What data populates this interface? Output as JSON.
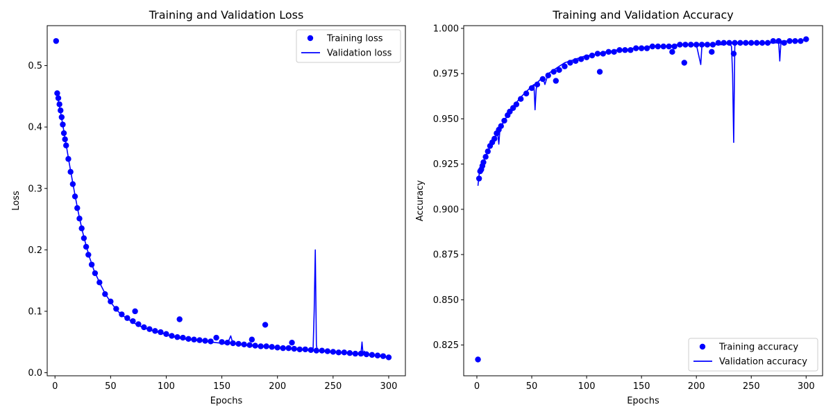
{
  "chart_data": [
    {
      "type": "scatter+line",
      "title": "Training and Validation Loss",
      "xlabel": "Epochs",
      "ylabel": "Loss",
      "xlim": [
        -7,
        315
      ],
      "ylim": [
        -0.005,
        0.565
      ],
      "xticks": [
        0,
        50,
        100,
        150,
        200,
        250,
        300
      ],
      "yticks": [
        0.0,
        0.1,
        0.2,
        0.3,
        0.4,
        0.5
      ],
      "ytick_labels": [
        "0.0",
        "0.1",
        "0.2",
        "0.3",
        "0.4",
        "0.5"
      ],
      "grid": false,
      "legend_placement": "upper-right",
      "color": "#0000ff",
      "series": [
        {
          "name": "Training loss",
          "style": "markers",
          "x": [
            1,
            2,
            3,
            4,
            5,
            6,
            7,
            8,
            9,
            10,
            12,
            14,
            16,
            18,
            20,
            22,
            24,
            26,
            28,
            30,
            33,
            36,
            40,
            45,
            50,
            55,
            60,
            65,
            70,
            72,
            75,
            80,
            85,
            90,
            95,
            100,
            105,
            110,
            112,
            115,
            120,
            125,
            130,
            135,
            140,
            145,
            150,
            155,
            160,
            165,
            170,
            175,
            177,
            180,
            185,
            189,
            190,
            195,
            200,
            205,
            210,
            213,
            215,
            220,
            225,
            230,
            235,
            240,
            245,
            250,
            255,
            260,
            265,
            270,
            275,
            280,
            285,
            290,
            295,
            300
          ],
          "y": [
            0.54,
            0.455,
            0.447,
            0.437,
            0.427,
            0.416,
            0.404,
            0.39,
            0.38,
            0.37,
            0.348,
            0.327,
            0.307,
            0.287,
            0.268,
            0.251,
            0.235,
            0.219,
            0.205,
            0.192,
            0.176,
            0.162,
            0.147,
            0.128,
            0.116,
            0.104,
            0.095,
            0.089,
            0.084,
            0.1,
            0.079,
            0.074,
            0.071,
            0.068,
            0.066,
            0.063,
            0.06,
            0.058,
            0.087,
            0.057,
            0.055,
            0.054,
            0.053,
            0.052,
            0.051,
            0.057,
            0.05,
            0.049,
            0.048,
            0.047,
            0.046,
            0.045,
            0.054,
            0.044,
            0.043,
            0.078,
            0.043,
            0.042,
            0.041,
            0.04,
            0.04,
            0.049,
            0.039,
            0.038,
            0.038,
            0.037,
            0.036,
            0.036,
            0.035,
            0.034,
            0.033,
            0.033,
            0.032,
            0.031,
            0.031,
            0.03,
            0.029,
            0.028,
            0.027,
            0.025
          ]
        },
        {
          "name": "Validation loss",
          "style": "line",
          "x": [
            1,
            2,
            3,
            4,
            5,
            6,
            8,
            10,
            12,
            14,
            16,
            18,
            20,
            22,
            25,
            28,
            31,
            35,
            40,
            45,
            50,
            55,
            60,
            65,
            70,
            75,
            80,
            85,
            90,
            95,
            100,
            105,
            110,
            115,
            120,
            125,
            130,
            135,
            140,
            145,
            150,
            155,
            158,
            160,
            165,
            170,
            175,
            180,
            185,
            190,
            195,
            200,
            205,
            210,
            215,
            220,
            225,
            230,
            232,
            233,
            234,
            235,
            236,
            240,
            245,
            250,
            255,
            260,
            265,
            270,
            275,
            276,
            277,
            278,
            280,
            285,
            290,
            295,
            300
          ],
          "y": [
            0.458,
            0.451,
            0.443,
            0.434,
            0.424,
            0.414,
            0.393,
            0.372,
            0.35,
            0.329,
            0.309,
            0.289,
            0.27,
            0.252,
            0.228,
            0.207,
            0.188,
            0.167,
            0.147,
            0.129,
            0.115,
            0.103,
            0.094,
            0.088,
            0.082,
            0.077,
            0.073,
            0.07,
            0.067,
            0.065,
            0.062,
            0.059,
            0.057,
            0.055,
            0.054,
            0.053,
            0.052,
            0.051,
            0.05,
            0.049,
            0.048,
            0.047,
            0.06,
            0.047,
            0.046,
            0.045,
            0.044,
            0.043,
            0.042,
            0.042,
            0.041,
            0.04,
            0.039,
            0.039,
            0.038,
            0.037,
            0.037,
            0.036,
            0.036,
            0.1,
            0.2,
            0.045,
            0.035,
            0.035,
            0.034,
            0.033,
            0.033,
            0.032,
            0.031,
            0.03,
            0.03,
            0.05,
            0.029,
            0.035,
            0.029,
            0.028,
            0.027,
            0.026,
            0.024
          ]
        }
      ]
    },
    {
      "type": "scatter+line",
      "title": "Training and Validation Accuracy",
      "xlabel": "Epochs",
      "ylabel": "Accuracy",
      "xlim": [
        -12,
        315
      ],
      "ylim": [
        0.808,
        1.0015
      ],
      "xticks": [
        0,
        50,
        100,
        150,
        200,
        250,
        300
      ],
      "yticks": [
        0.825,
        0.85,
        0.875,
        0.9,
        0.925,
        0.95,
        0.975,
        1.0
      ],
      "ytick_labels": [
        "0.825",
        "0.850",
        "0.875",
        "0.900",
        "0.925",
        "0.950",
        "0.975",
        "1.000"
      ],
      "grid": false,
      "legend_placement": "lower-right",
      "color": "#0000ff",
      "series": [
        {
          "name": "Training accuracy",
          "style": "markers",
          "x": [
            1,
            2,
            3,
            4,
            5,
            6,
            8,
            10,
            12,
            14,
            16,
            18,
            20,
            22,
            25,
            28,
            30,
            33,
            36,
            40,
            45,
            50,
            55,
            60,
            65,
            70,
            72,
            75,
            80,
            85,
            90,
            95,
            100,
            105,
            110,
            112,
            115,
            120,
            125,
            130,
            135,
            140,
            145,
            150,
            155,
            160,
            165,
            170,
            175,
            178,
            180,
            185,
            189,
            190,
            195,
            200,
            205,
            210,
            214,
            215,
            220,
            225,
            230,
            234,
            235,
            240,
            245,
            250,
            255,
            260,
            265,
            270,
            275,
            280,
            285,
            290,
            295,
            300
          ],
          "y": [
            0.817,
            0.917,
            0.921,
            0.922,
            0.924,
            0.926,
            0.929,
            0.932,
            0.935,
            0.937,
            0.939,
            0.942,
            0.944,
            0.946,
            0.949,
            0.952,
            0.954,
            0.956,
            0.958,
            0.961,
            0.964,
            0.967,
            0.969,
            0.972,
            0.974,
            0.976,
            0.971,
            0.977,
            0.979,
            0.981,
            0.982,
            0.983,
            0.984,
            0.985,
            0.986,
            0.976,
            0.986,
            0.987,
            0.987,
            0.988,
            0.988,
            0.988,
            0.989,
            0.989,
            0.989,
            0.99,
            0.99,
            0.99,
            0.99,
            0.987,
            0.99,
            0.991,
            0.981,
            0.991,
            0.991,
            0.991,
            0.991,
            0.991,
            0.987,
            0.991,
            0.992,
            0.992,
            0.992,
            0.986,
            0.992,
            0.992,
            0.992,
            0.992,
            0.992,
            0.992,
            0.992,
            0.993,
            0.993,
            0.992,
            0.993,
            0.993,
            0.993,
            0.994
          ]
        },
        {
          "name": "Validation accuracy",
          "style": "line",
          "x": [
            1,
            2,
            3,
            5,
            7,
            10,
            13,
            16,
            19,
            20,
            21,
            24,
            27,
            30,
            33,
            36,
            40,
            45,
            50,
            52,
            53,
            54,
            55,
            60,
            62,
            65,
            70,
            75,
            80,
            85,
            90,
            95,
            100,
            105,
            110,
            115,
            120,
            125,
            130,
            135,
            140,
            145,
            150,
            155,
            160,
            165,
            170,
            175,
            180,
            185,
            190,
            195,
            200,
            204,
            205,
            206,
            210,
            215,
            220,
            225,
            230,
            232,
            233,
            234,
            235,
            236,
            240,
            245,
            250,
            255,
            260,
            265,
            270,
            275,
            276,
            277,
            278,
            280,
            285,
            290,
            295,
            300
          ],
          "y": [
            0.913,
            0.919,
            0.922,
            0.925,
            0.928,
            0.932,
            0.936,
            0.939,
            0.942,
            0.936,
            0.944,
            0.948,
            0.951,
            0.954,
            0.957,
            0.959,
            0.962,
            0.965,
            0.968,
            0.969,
            0.955,
            0.966,
            0.97,
            0.973,
            0.969,
            0.975,
            0.977,
            0.979,
            0.981,
            0.982,
            0.983,
            0.984,
            0.985,
            0.985,
            0.986,
            0.987,
            0.987,
            0.988,
            0.988,
            0.988,
            0.989,
            0.989,
            0.989,
            0.99,
            0.99,
            0.99,
            0.99,
            0.99,
            0.991,
            0.991,
            0.991,
            0.991,
            0.991,
            0.98,
            0.99,
            0.991,
            0.991,
            0.991,
            0.991,
            0.991,
            0.992,
            0.99,
            0.975,
            0.937,
            0.99,
            0.992,
            0.992,
            0.992,
            0.992,
            0.992,
            0.992,
            0.992,
            0.992,
            0.992,
            0.982,
            0.992,
            0.993,
            0.993,
            0.993,
            0.993,
            0.993,
            0.994
          ]
        }
      ]
    }
  ]
}
